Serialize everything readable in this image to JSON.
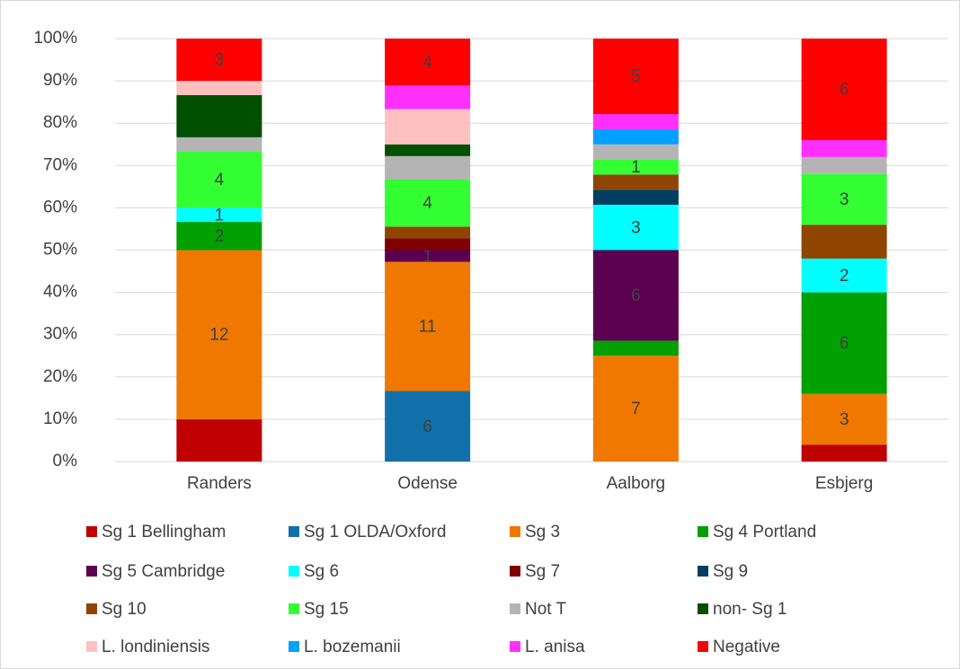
{
  "chart_data": {
    "type": "stacked_percent",
    "categories": [
      "Randers",
      "Odense",
      "Aalborg",
      "Esbjerg"
    ],
    "ylim": [
      0,
      100
    ],
    "yticks": [
      {
        "value": 0,
        "label": "0%"
      },
      {
        "value": 10,
        "label": "10%"
      },
      {
        "value": 20,
        "label": "20%"
      },
      {
        "value": 30,
        "label": "30%"
      },
      {
        "value": 40,
        "label": "40%"
      },
      {
        "value": 50,
        "label": "50%"
      },
      {
        "value": 60,
        "label": "60%"
      },
      {
        "value": 70,
        "label": "70%"
      },
      {
        "value": 80,
        "label": "80%"
      },
      {
        "value": 90,
        "label": "90%"
      },
      {
        "value": 100,
        "label": "100%"
      }
    ],
    "grid": true,
    "legend": "bottom",
    "series": [
      {
        "name": "Sg 1 Bellingham",
        "color": "#c00000",
        "values": [
          3,
          null,
          null,
          1
        ],
        "value_labels": [
          null,
          null,
          null,
          null
        ]
      },
      {
        "name": "Sg 1 OLDA/Oxford",
        "color": "#1170aa",
        "values": [
          null,
          6,
          null,
          null
        ],
        "value_labels": [
          null,
          "6",
          null,
          null
        ]
      },
      {
        "name": "Sg 3",
        "color": "#f07800",
        "values": [
          12,
          11,
          7,
          3
        ],
        "value_labels": [
          "12",
          "11",
          "7",
          "3"
        ]
      },
      {
        "name": "Sg 4 Portland",
        "color": "#00a000",
        "values": [
          2,
          null,
          1,
          6
        ],
        "value_labels": [
          "2",
          null,
          null,
          "6"
        ]
      },
      {
        "name": "Sg 5 Cambridge",
        "color": "#5c0050",
        "values": [
          null,
          1,
          6,
          null
        ],
        "value_labels": [
          null,
          "1",
          "6",
          null
        ]
      },
      {
        "name": "Sg 6",
        "color": "#00ffff",
        "values": [
          1,
          null,
          3,
          2
        ],
        "value_labels": [
          "1",
          null,
          "3",
          "2"
        ]
      },
      {
        "name": "Sg 7",
        "color": "#800000",
        "values": [
          null,
          1,
          null,
          null
        ],
        "value_labels": [
          null,
          null,
          null,
          null
        ]
      },
      {
        "name": "Sg 9",
        "color": "#003f60",
        "values": [
          null,
          null,
          1,
          null
        ],
        "value_labels": [
          null,
          null,
          null,
          null
        ]
      },
      {
        "name": "Sg 10",
        "color": "#8f4500",
        "values": [
          null,
          1,
          1,
          2
        ],
        "value_labels": [
          null,
          null,
          null,
          null
        ]
      },
      {
        "name": "Sg 15",
        "color": "#33ff33",
        "values": [
          4,
          4,
          1,
          3
        ],
        "value_labels": [
          "4",
          "4",
          "1",
          "3"
        ]
      },
      {
        "name": "Not T",
        "color": "#b4b4b4",
        "values": [
          1,
          2,
          1,
          1
        ],
        "value_labels": [
          null,
          null,
          null,
          null
        ]
      },
      {
        "name": "non- Sg 1",
        "color": "#005000",
        "values": [
          3,
          1,
          null,
          null
        ],
        "value_labels": [
          null,
          null,
          null,
          null
        ]
      },
      {
        "name": "L. londiniensis",
        "color": "#ffc0c0",
        "values": [
          1,
          3,
          null,
          null
        ],
        "value_labels": [
          null,
          null,
          null,
          null
        ]
      },
      {
        "name": "L. bozemanii",
        "color": "#00a0ff",
        "values": [
          null,
          null,
          1,
          null
        ],
        "value_labels": [
          null,
          null,
          null,
          null
        ]
      },
      {
        "name": "L. anisa",
        "color": "#ff30ff",
        "values": [
          null,
          2,
          1,
          1
        ],
        "value_labels": [
          null,
          null,
          null,
          null
        ]
      },
      {
        "name": "Negative",
        "color": "#ff0000",
        "values": [
          3,
          4,
          5,
          6
        ],
        "value_labels": [
          "3",
          "4",
          "5",
          "6"
        ]
      }
    ]
  }
}
